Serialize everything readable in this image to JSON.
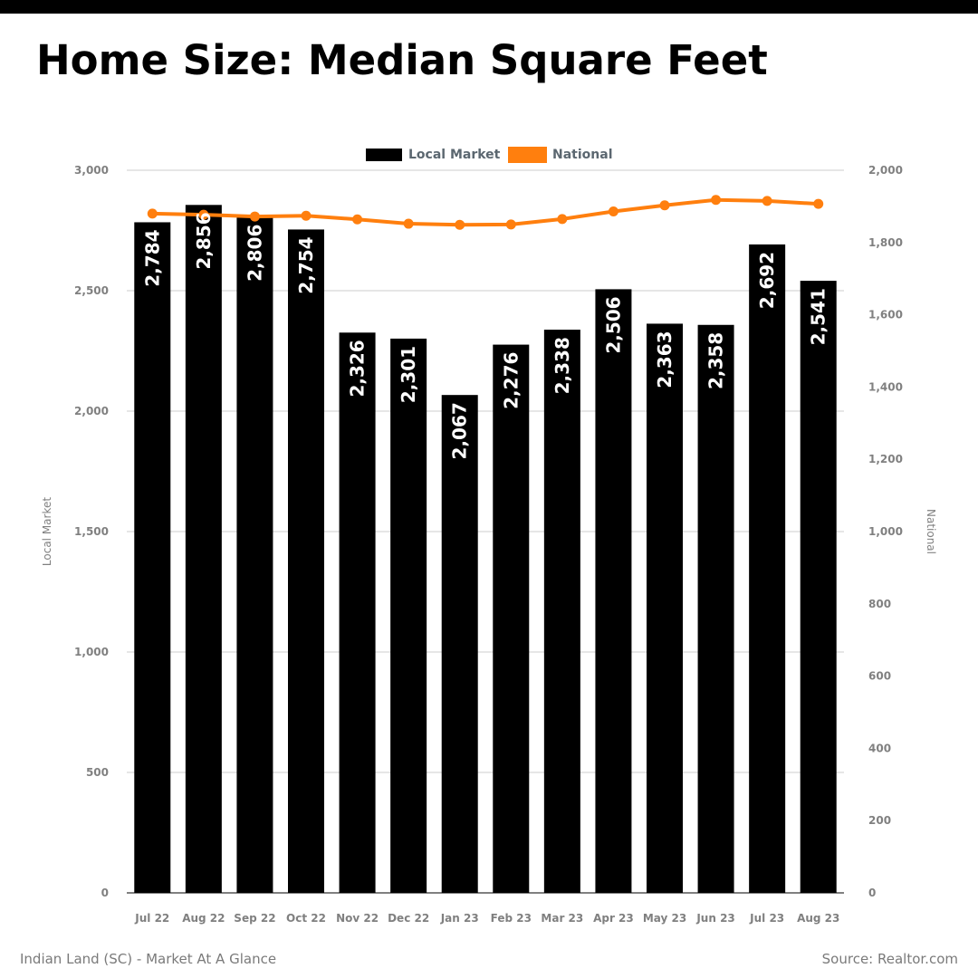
{
  "page": {
    "title": "Home Size: Median Square Feet",
    "footer_left": "Indian Land (SC) - Market At A Glance",
    "footer_right": "Source: Realtor.com"
  },
  "chart_data": {
    "type": "bar",
    "categories": [
      "Jul 22",
      "Aug 22",
      "Sep 22",
      "Oct 22",
      "Nov 22",
      "Dec 22",
      "Jan 23",
      "Feb 23",
      "Mar 23",
      "Apr 23",
      "May 23",
      "Jun 23",
      "Jul 23",
      "Aug 23"
    ],
    "series": [
      {
        "name": "Local Market",
        "type": "bar",
        "axis": "left",
        "color": "#000000",
        "values": [
          2784,
          2856,
          2806,
          2754,
          2326,
          2301,
          2067,
          2276,
          2338,
          2506,
          2363,
          2358,
          2692,
          2541
        ],
        "labels": [
          "2,784",
          "2,856",
          "2,806",
          "2,754",
          "2,326",
          "2,301",
          "2,067",
          "2,276",
          "2,338",
          "2,506",
          "2,363",
          "2,358",
          "2,692",
          "2,541"
        ]
      },
      {
        "name": "National",
        "type": "line",
        "axis": "right",
        "color": "#ff7f0e",
        "values": [
          1880,
          1877,
          1872,
          1874,
          1864,
          1852,
          1849,
          1850,
          1865,
          1886,
          1903,
          1918,
          1915,
          1907
        ]
      }
    ],
    "ylabel_left": "Local Market",
    "ylabel_right": "National",
    "ylim_left": [
      0,
      3000
    ],
    "ylim_right": [
      0,
      2000
    ],
    "yticks_left": [
      "0",
      "500",
      "1,000",
      "1,500",
      "2,000",
      "2,500",
      "3,000"
    ],
    "yticks_right": [
      "0",
      "200",
      "400",
      "600",
      "800",
      "1,000",
      "1,200",
      "1,400",
      "1,600",
      "1,800",
      "2,000"
    ],
    "legend_position": "top-center",
    "grid": true
  }
}
